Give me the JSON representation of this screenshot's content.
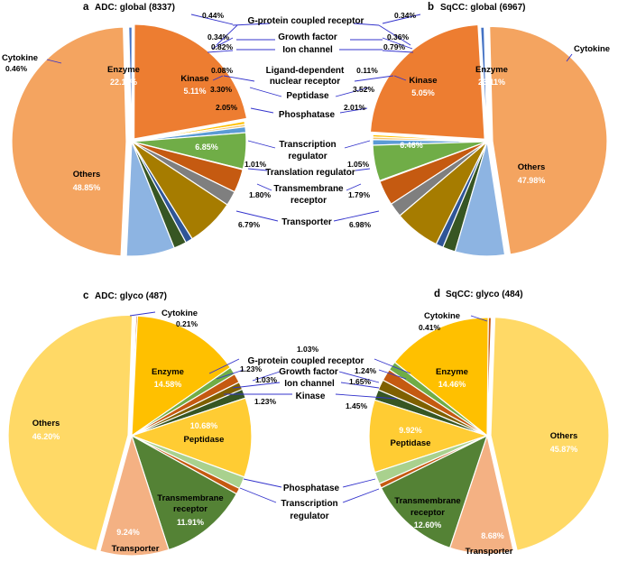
{
  "colors": {
    "Cytokine": "#4472c4",
    "Enzyme": "#ed7d31",
    "Others": "#f4a460",
    "G-protein coupled receptor": "#ffc000",
    "Growth factor": "#f2c46a",
    "Ion channel": "#5b9bd5",
    "Kinase": "#70ad47",
    "Ligand-dependent nuclear receptor": "#a9d18e",
    "Peptidase": "#c55a11",
    "Phosphatase": "#7f7f7f",
    "Transcription regulator": "#a67c00",
    "Translation regulator": "#2f5597",
    "Transmembrane receptor": "#375623",
    "Transporter": "#8db4e2",
    "glyco_Enzyme": "#ffc000",
    "glyco_Others": "#ffd966",
    "glyco_Peptidase": "#ffcc33",
    "glyco_Transmembrane receptor": "#548235",
    "glyco_Transporter": "#f4b183",
    "glyco_Cytokine": "#c55a11",
    "glyco_G-protein coupled receptor": "#70ad47",
    "glyco_Growth factor": "#c55a11",
    "glyco_Ion channel": "#7f6000",
    "glyco_Kinase": "#375623",
    "glyco_Phosphatase": "#a9d18e",
    "glyco_Transcription regulator": "#c55a11",
    "connector": "#3333cc",
    "label_dark": "#000000",
    "label_light": "#ffffff"
  },
  "chart_data": [
    {
      "type": "pie",
      "panel": "a",
      "title": "ADC: global (8337)",
      "slices": [
        {
          "category": "Cytokine",
          "value": 0.46,
          "label": "0.46%"
        },
        {
          "category": "Enzyme",
          "value": 22.11,
          "label": "22.11%"
        },
        {
          "category": "G-protein coupled receptor",
          "value": 0.44,
          "label": "0.44%"
        },
        {
          "category": "Growth factor",
          "value": 0.34,
          "label": "0.34%"
        },
        {
          "category": "Ion channel",
          "value": 0.82,
          "label": "0.82%"
        },
        {
          "category": "Kinase",
          "value": 5.11,
          "label": "5.11%"
        },
        {
          "category": "Ligand-dependent nuclear receptor",
          "value": 0.08,
          "label": "0.08%"
        },
        {
          "category": "Peptidase",
          "value": 3.3,
          "label": "3.30%"
        },
        {
          "category": "Phosphatase",
          "value": 2.05,
          "label": "2.05%"
        },
        {
          "category": "Transcription regulator",
          "value": 6.85,
          "label": "6.85%"
        },
        {
          "category": "Translation regulator",
          "value": 1.01,
          "label": "1.01%"
        },
        {
          "category": "Transmembrane receptor",
          "value": 1.8,
          "label": "1.80%"
        },
        {
          "category": "Transporter",
          "value": 6.79,
          "label": "6.79%"
        },
        {
          "category": "Others",
          "value": 48.85,
          "label": "48.85%"
        }
      ]
    },
    {
      "type": "pie",
      "panel": "b",
      "title": "SqCC: global (6967)",
      "slices": [
        {
          "category": "Cytokine",
          "value": 0.5,
          "label": ""
        },
        {
          "category": "Enzyme",
          "value": 23.11,
          "label": "23.11%"
        },
        {
          "category": "G-protein coupled receptor",
          "value": 0.34,
          "label": "0.34%"
        },
        {
          "category": "Growth factor",
          "value": 0.36,
          "label": "0.36%"
        },
        {
          "category": "Ion channel",
          "value": 0.79,
          "label": "0.79%"
        },
        {
          "category": "Kinase",
          "value": 5.05,
          "label": "5.05%"
        },
        {
          "category": "Ligand-dependent nuclear receptor",
          "value": 0.11,
          "label": "0.11%"
        },
        {
          "category": "Peptidase",
          "value": 3.52,
          "label": "3.52%"
        },
        {
          "category": "Phosphatase",
          "value": 2.01,
          "label": "2.01%"
        },
        {
          "category": "Transcription regulator",
          "value": 6.46,
          "label": "6.46%"
        },
        {
          "category": "Translation regulator",
          "value": 1.05,
          "label": "1.05%"
        },
        {
          "category": "Transmembrane receptor",
          "value": 1.79,
          "label": "1.79%"
        },
        {
          "category": "Transporter",
          "value": 6.98,
          "label": "6.98%"
        },
        {
          "category": "Others",
          "value": 47.98,
          "label": "47.98%"
        }
      ]
    },
    {
      "type": "pie",
      "panel": "c",
      "title": "ADC: glyco (487)",
      "slices": [
        {
          "category": "Cytokine",
          "value": 0.21,
          "label": "0.21%"
        },
        {
          "category": "Enzyme",
          "value": 14.58,
          "label": "14.58%"
        },
        {
          "category": "G-protein coupled receptor",
          "value": 1.03,
          "label": "1.03%"
        },
        {
          "category": "Growth factor",
          "value": 1.23,
          "label": "1.23%"
        },
        {
          "category": "Ion channel",
          "value": 1.03,
          "label": "1.03%"
        },
        {
          "category": "Kinase",
          "value": 1.23,
          "label": "1.23%"
        },
        {
          "category": "Peptidase",
          "value": 10.68,
          "label": "10.68%"
        },
        {
          "category": "Phosphatase",
          "value": 1.64,
          "label": ""
        },
        {
          "category": "Transcription regulator",
          "value": 0.82,
          "label": ""
        },
        {
          "category": "Transmembrane receptor",
          "value": 11.91,
          "label": "11.91%"
        },
        {
          "category": "Transporter",
          "value": 9.24,
          "label": "9.24%"
        },
        {
          "category": "Others",
          "value": 46.2,
          "label": "46.20%"
        }
      ]
    },
    {
      "type": "pie",
      "panel": "d",
      "title": "SqCC: glyco (484)",
      "slices": [
        {
          "category": "Cytokine",
          "value": 0.41,
          "label": "0.41%"
        },
        {
          "category": "Enzyme",
          "value": 14.46,
          "label": "14.46%"
        },
        {
          "category": "G-protein coupled receptor",
          "value": 1.24,
          "label": "1.24%"
        },
        {
          "category": "Growth factor",
          "value": 1.65,
          "label": "1.65%"
        },
        {
          "category": "Ion channel",
          "value": 1.45,
          "label": "1.45%"
        },
        {
          "category": "Kinase",
          "value": 1.45,
          "label": ""
        },
        {
          "category": "Peptidase",
          "value": 9.92,
          "label": "9.92%"
        },
        {
          "category": "Phosphatase",
          "value": 1.65,
          "label": ""
        },
        {
          "category": "Transcription regulator",
          "value": 0.62,
          "label": ""
        },
        {
          "category": "Transmembrane receptor",
          "value": 12.6,
          "label": "12.60%"
        },
        {
          "category": "Transporter",
          "value": 8.68,
          "label": "8.68%"
        },
        {
          "category": "Others",
          "value": 45.87,
          "label": "45.87%"
        }
      ]
    }
  ],
  "panel_a": {
    "letter": "a"
  },
  "panel_b": {
    "letter": "b"
  },
  "panel_c": {
    "letter": "c"
  },
  "panel_d": {
    "letter": "d"
  },
  "top_legend": {
    "g_protein": "G-protein coupled receptor",
    "growth_factor": "Growth factor",
    "ion_channel": "Ion channel",
    "ligand_1": "Ligand-dependent",
    "ligand_2": "nuclear receptor",
    "peptidase": "Peptidase",
    "phosphatase": "Phosphatase",
    "transcription_1": "Transcription",
    "transcription_2": "regulator",
    "translation": "Translation regulator",
    "transmembrane_1": "Transmembrane",
    "transmembrane_2": "receptor",
    "transporter": "Transporter"
  },
  "top_inner": {
    "cytokine": "Cytokine",
    "enzyme": "Enzyme",
    "kinase": "Kinase",
    "others": "Others"
  },
  "bottom_legend": {
    "gpcr_pct": "1.03%",
    "g_protein": "G-protein coupled receptor",
    "growth_factor": "Growth factor",
    "ion_channel": "Ion channel",
    "kinase": "Kinase",
    "phosphatase": "Phosphatase",
    "transcription_1": "Transcription",
    "transcription_2": "regulator"
  },
  "bottom_inner": {
    "cytokine": "Cytokine",
    "enzyme": "Enzyme",
    "others": "Others",
    "peptidase": "Peptidase",
    "transmembrane_1": "Transmembrane",
    "transmembrane_2": "receptor",
    "transporter": "Transporter"
  }
}
